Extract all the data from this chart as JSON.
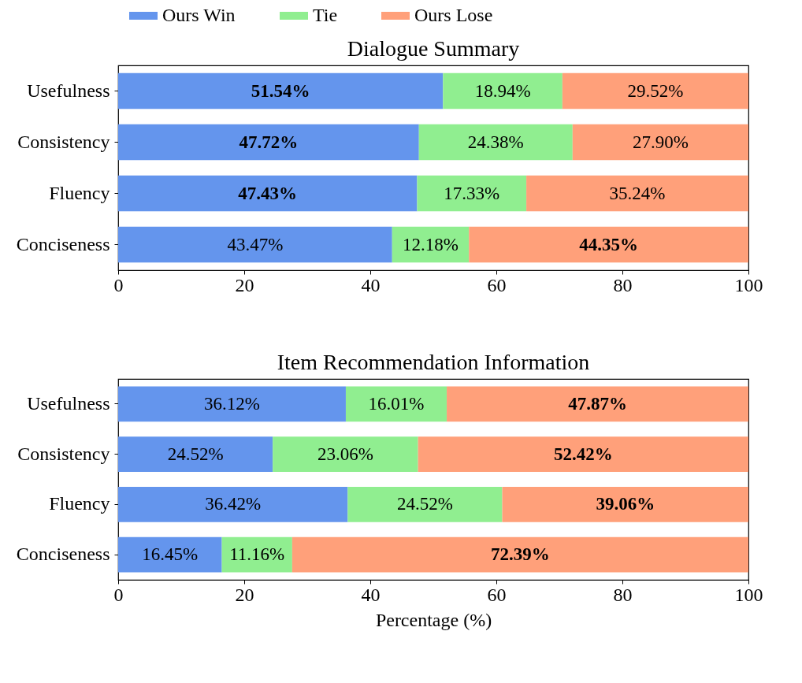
{
  "chart_data": [
    {
      "type": "bar",
      "orientation": "horizontal",
      "stacked": true,
      "title": "Dialogue Summary",
      "categories": [
        "Usefulness",
        "Consistency",
        "Fluency",
        "Conciseness"
      ],
      "xlim": [
        0,
        100
      ],
      "xticks": [
        0,
        20,
        40,
        60,
        80,
        100
      ],
      "legend": "top",
      "grid": false,
      "series": [
        {
          "name": "Ours Win",
          "color": "#6495ed",
          "values": [
            51.54,
            47.72,
            47.43,
            43.47
          ],
          "value_labels": [
            "51.54%",
            "47.72%",
            "47.43%",
            "43.47%"
          ]
        },
        {
          "name": "Tie",
          "color": "#90ee90",
          "values": [
            18.94,
            24.38,
            17.33,
            12.18
          ],
          "value_labels": [
            "18.94%",
            "24.38%",
            "17.33%",
            "12.18%"
          ]
        },
        {
          "name": "Ours Lose",
          "color": "#ffa07a",
          "values": [
            29.52,
            27.9,
            35.24,
            44.35
          ],
          "value_labels": [
            "29.52%",
            "27.90%",
            "35.24%",
            "44.35%"
          ]
        }
      ]
    },
    {
      "type": "bar",
      "orientation": "horizontal",
      "stacked": true,
      "title": "Item Recommendation Information",
      "xlabel": "Percentage (%)",
      "categories": [
        "Usefulness",
        "Consistency",
        "Fluency",
        "Conciseness"
      ],
      "xlim": [
        0,
        100
      ],
      "xticks": [
        0,
        20,
        40,
        60,
        80,
        100
      ],
      "legend": false,
      "grid": false,
      "series": [
        {
          "color": "#6495ed",
          "values": [
            36.12,
            24.52,
            36.42,
            16.45
          ],
          "value_labels": [
            "36.12%",
            "24.52%",
            "36.42%",
            "16.45%"
          ]
        },
        {
          "color": "#90ee90",
          "values": [
            16.01,
            23.06,
            24.52,
            11.16
          ],
          "value_labels": [
            "16.01%",
            "23.06%",
            "24.52%",
            "11.16%"
          ]
        },
        {
          "color": "#ffa07a",
          "values": [
            47.87,
            52.42,
            39.06,
            72.39
          ],
          "value_labels": [
            "47.87%",
            "52.42%",
            "39.06%",
            "72.39%"
          ]
        }
      ]
    }
  ]
}
